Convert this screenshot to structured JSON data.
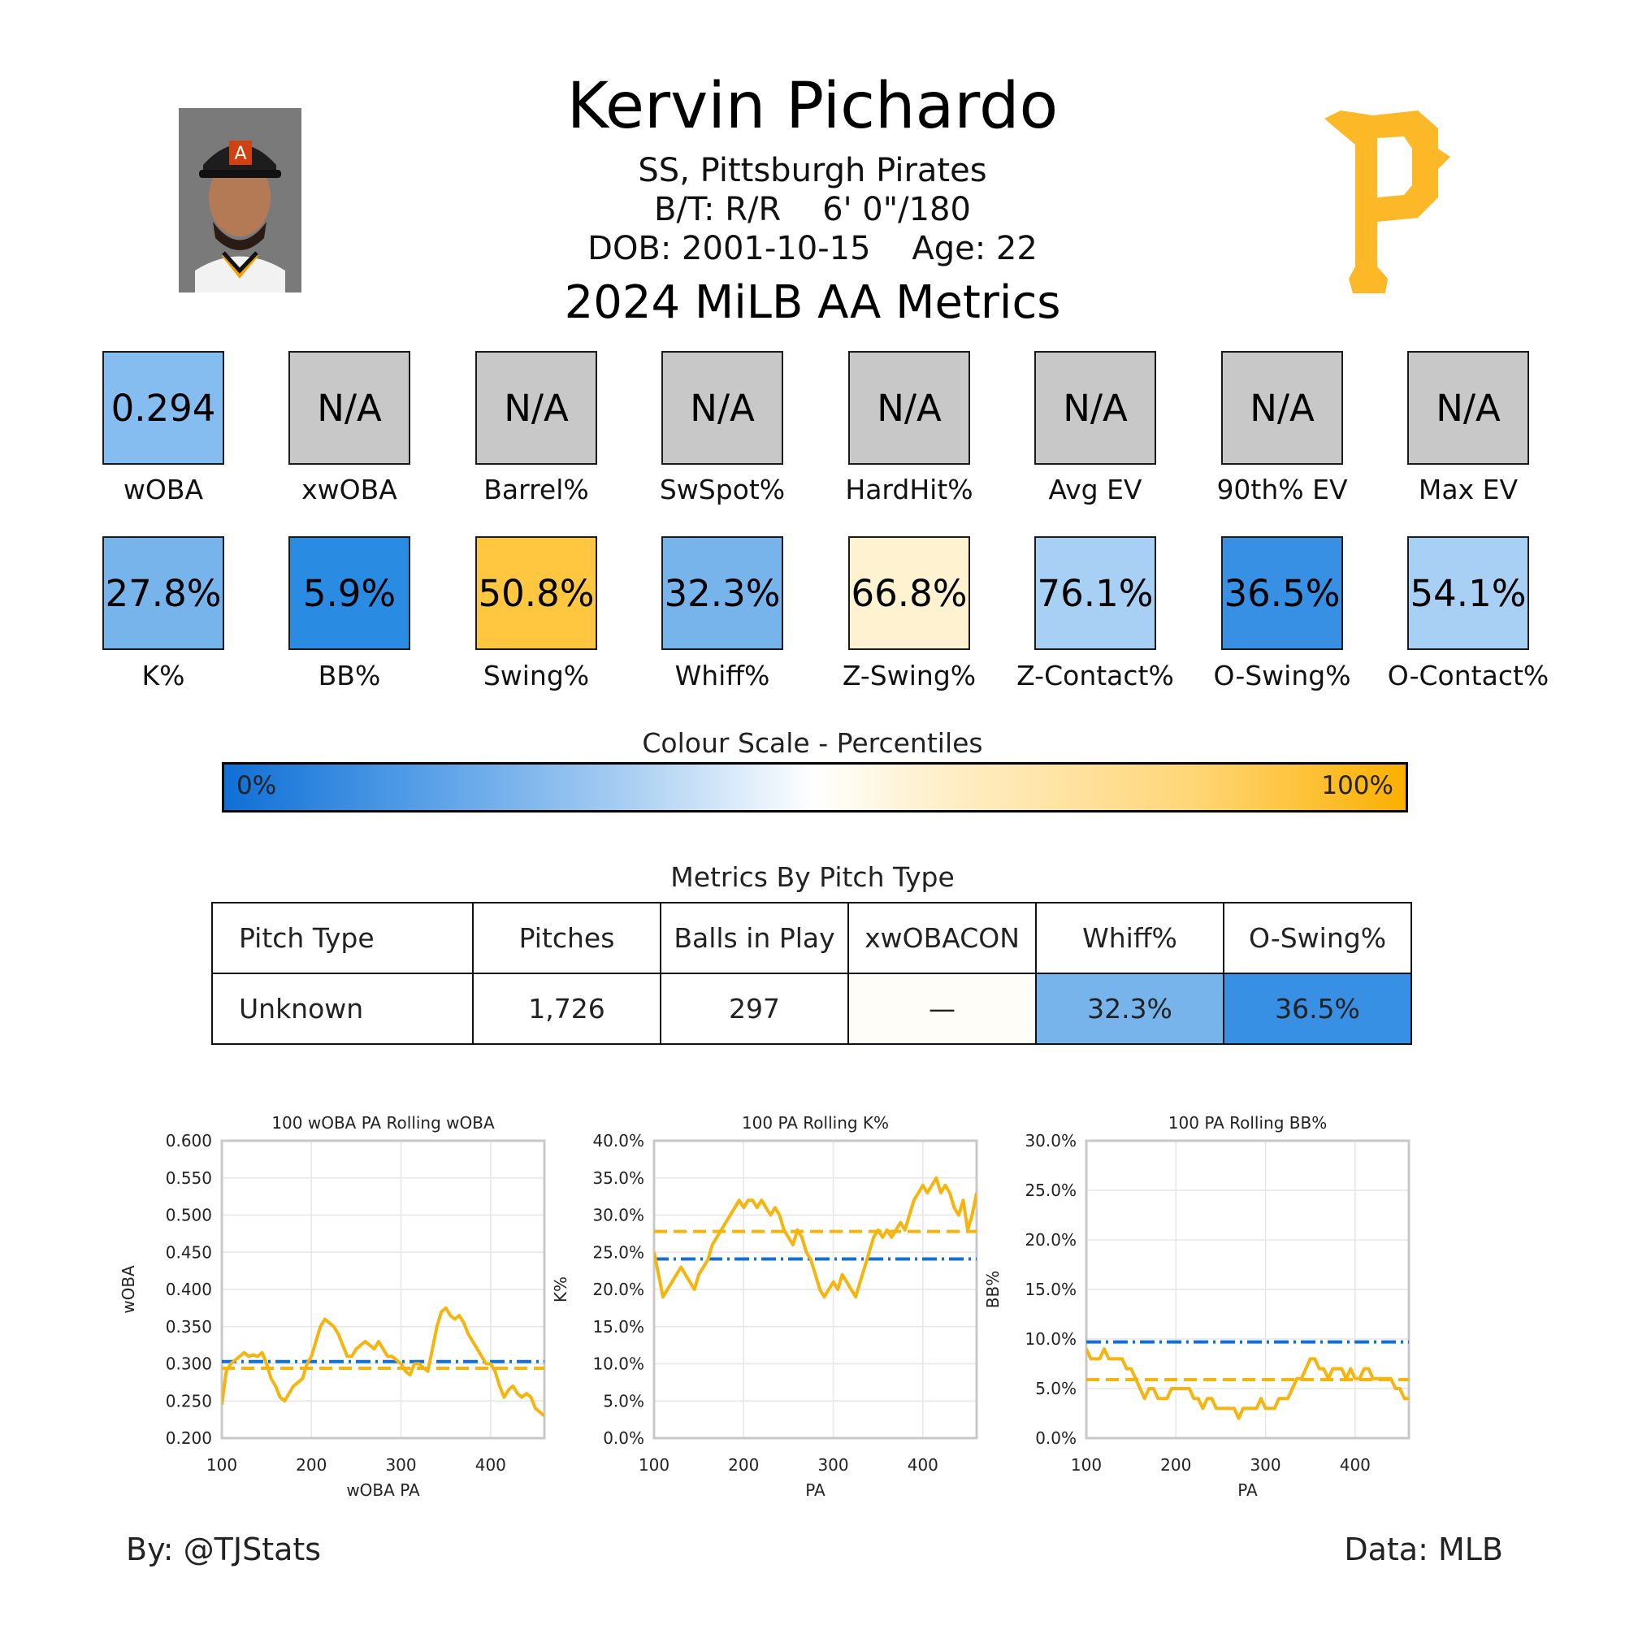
{
  "header": {
    "name": "Kervin Pichardo",
    "position_team": "SS, Pittsburgh Pirates",
    "bt_height": "B/T: R/R    6' 0\"/180",
    "dob_age": "DOB: 2001-10-15    Age: 22",
    "section_title": "2024 MiLB AA Metrics",
    "logo_icon": "pirates-p-logo",
    "photo_icon": "player-headshot"
  },
  "metrics_row1": [
    {
      "label": "wOBA",
      "value": "0.294",
      "color": "#85bdf0"
    },
    {
      "label": "xwOBA",
      "value": "N/A",
      "color": "#c8c8c8"
    },
    {
      "label": "Barrel%",
      "value": "N/A",
      "color": "#c8c8c8"
    },
    {
      "label": "SwSpot%",
      "value": "N/A",
      "color": "#c8c8c8"
    },
    {
      "label": "HardHit%",
      "value": "N/A",
      "color": "#c8c8c8"
    },
    {
      "label": "Avg EV",
      "value": "N/A",
      "color": "#c8c8c8"
    },
    {
      "label": "90th% EV",
      "value": "N/A",
      "color": "#c8c8c8"
    },
    {
      "label": "Max EV",
      "value": "N/A",
      "color": "#c8c8c8"
    }
  ],
  "metrics_row2": [
    {
      "label": "K%",
      "value": "27.8%",
      "color": "#78b4ec"
    },
    {
      "label": "BB%",
      "value": "5.9%",
      "color": "#2a8be3"
    },
    {
      "label": "Swing%",
      "value": "50.8%",
      "color": "#ffc640"
    },
    {
      "label": "Whiff%",
      "value": "32.3%",
      "color": "#78b4ec"
    },
    {
      "label": "Z-Swing%",
      "value": "66.8%",
      "color": "#fff2d0"
    },
    {
      "label": "Z-Contact%",
      "value": "76.1%",
      "color": "#a7d0f4"
    },
    {
      "label": "O-Swing%",
      "value": "36.5%",
      "color": "#3790e4"
    },
    {
      "label": "O-Contact%",
      "value": "54.1%",
      "color": "#a7d0f4"
    }
  ],
  "colour_scale": {
    "title": "Colour Scale - Percentiles",
    "min_label": "0%",
    "max_label": "100%"
  },
  "pitch_table": {
    "title": "Metrics By Pitch Type",
    "headers": [
      "Pitch Type",
      "Pitches",
      "Balls in Play",
      "xwOBACON",
      "Whiff%",
      "O-Swing%"
    ],
    "rows": [
      {
        "cells": [
          "Unknown",
          "1,726",
          "297",
          "—",
          "32.3%",
          "36.5%"
        ],
        "colors": [
          "#ffffff",
          "#ffffff",
          "#ffffff",
          "#fffdf8",
          "#78b4ec",
          "#3790e4"
        ]
      }
    ]
  },
  "chart_data": [
    {
      "type": "line",
      "title": "100 wOBA PA Rolling wOBA",
      "xlabel": "wOBA PA",
      "ylabel": "wOBA",
      "xlim": [
        100,
        460
      ],
      "ylim": [
        0.2,
        0.6
      ],
      "xticks": [
        100,
        200,
        300,
        400
      ],
      "yticks": [
        0.2,
        0.25,
        0.3,
        0.35,
        0.4,
        0.45,
        0.5,
        0.55,
        0.6
      ],
      "ytick_labels": [
        "0.200",
        "0.250",
        "0.300",
        "0.350",
        "0.400",
        "0.450",
        "0.500",
        "0.550",
        "0.600"
      ],
      "grid": true,
      "player_avg": 0.294,
      "league_avg": 0.303,
      "series": [
        {
          "x": [
            100,
            105,
            110,
            115,
            120,
            125,
            130,
            135,
            140,
            145,
            150,
            155,
            160,
            165,
            170,
            175,
            180,
            185,
            190,
            195,
            200,
            205,
            210,
            215,
            220,
            225,
            230,
            235,
            240,
            245,
            250,
            255,
            260,
            265,
            270,
            275,
            280,
            285,
            290,
            295,
            300,
            305,
            310,
            315,
            320,
            325,
            330,
            335,
            340,
            345,
            350,
            355,
            360,
            365,
            370,
            375,
            380,
            385,
            390,
            395,
            400,
            405,
            410,
            415,
            420,
            425,
            430,
            435,
            440,
            445,
            450,
            455,
            460
          ],
          "y": [
            0.245,
            0.29,
            0.3,
            0.305,
            0.31,
            0.315,
            0.31,
            0.312,
            0.31,
            0.315,
            0.3,
            0.28,
            0.27,
            0.255,
            0.25,
            0.26,
            0.27,
            0.275,
            0.28,
            0.3,
            0.31,
            0.33,
            0.35,
            0.36,
            0.355,
            0.35,
            0.34,
            0.325,
            0.31,
            0.31,
            0.32,
            0.325,
            0.33,
            0.325,
            0.32,
            0.33,
            0.32,
            0.31,
            0.31,
            0.305,
            0.3,
            0.29,
            0.285,
            0.3,
            0.3,
            0.295,
            0.29,
            0.32,
            0.35,
            0.37,
            0.375,
            0.365,
            0.36,
            0.365,
            0.355,
            0.34,
            0.33,
            0.32,
            0.31,
            0.3,
            0.3,
            0.29,
            0.27,
            0.255,
            0.265,
            0.27,
            0.26,
            0.255,
            0.26,
            0.255,
            0.24,
            0.235,
            0.23
          ]
        }
      ]
    },
    {
      "type": "line",
      "title": "100 PA Rolling K%",
      "xlabel": "PA",
      "ylabel": "K%",
      "xlim": [
        100,
        460
      ],
      "ylim": [
        0,
        40
      ],
      "xticks": [
        100,
        200,
        300,
        400
      ],
      "yticks": [
        0,
        5,
        10,
        15,
        20,
        25,
        30,
        35,
        40
      ],
      "ytick_labels": [
        "0.0%",
        "5.0%",
        "10.0%",
        "15.0%",
        "20.0%",
        "25.0%",
        "30.0%",
        "35.0%",
        "40.0%"
      ],
      "grid": true,
      "player_avg": 27.8,
      "league_avg": 24.1,
      "series": [
        {
          "x": [
            100,
            105,
            110,
            115,
            120,
            125,
            130,
            135,
            140,
            145,
            150,
            155,
            160,
            165,
            170,
            175,
            180,
            185,
            190,
            195,
            200,
            205,
            210,
            215,
            220,
            225,
            230,
            235,
            240,
            245,
            250,
            255,
            260,
            265,
            270,
            275,
            280,
            285,
            290,
            295,
            300,
            305,
            310,
            315,
            320,
            325,
            330,
            335,
            340,
            345,
            350,
            355,
            360,
            365,
            370,
            375,
            380,
            385,
            390,
            395,
            400,
            405,
            410,
            415,
            420,
            425,
            430,
            435,
            440,
            445,
            450,
            455,
            460
          ],
          "y": [
            25,
            22,
            19,
            20,
            21,
            22,
            23,
            22,
            21,
            20,
            22,
            23,
            24,
            26,
            27,
            28,
            29,
            30,
            31,
            32,
            31,
            32,
            32,
            31,
            32,
            31,
            30,
            31,
            30,
            28,
            27,
            26,
            28,
            27,
            25,
            24,
            22,
            20,
            19,
            20,
            21,
            20,
            22,
            21,
            20,
            19,
            21,
            23,
            25,
            27,
            28,
            27,
            28,
            27,
            28,
            29,
            28,
            30,
            32,
            33,
            34,
            33,
            34,
            35,
            33,
            34,
            33,
            31,
            30,
            32,
            28,
            30,
            33
          ]
        }
      ]
    },
    {
      "type": "line",
      "title": "100 PA Rolling BB%",
      "xlabel": "PA",
      "ylabel": "BB%",
      "xlim": [
        100,
        460
      ],
      "ylim": [
        0,
        30
      ],
      "xticks": [
        100,
        200,
        300,
        400
      ],
      "yticks": [
        0,
        5,
        10,
        15,
        20,
        25,
        30
      ],
      "ytick_labels": [
        "0.0%",
        "5.0%",
        "10.0%",
        "15.0%",
        "20.0%",
        "25.0%",
        "30.0%"
      ],
      "grid": true,
      "player_avg": 5.9,
      "league_avg": 9.7,
      "series": [
        {
          "x": [
            100,
            105,
            110,
            115,
            120,
            125,
            130,
            135,
            140,
            145,
            150,
            155,
            160,
            165,
            170,
            175,
            180,
            185,
            190,
            195,
            200,
            205,
            210,
            215,
            220,
            225,
            230,
            235,
            240,
            245,
            250,
            255,
            260,
            265,
            270,
            275,
            280,
            285,
            290,
            295,
            300,
            305,
            310,
            315,
            320,
            325,
            330,
            335,
            340,
            345,
            350,
            355,
            360,
            365,
            370,
            375,
            380,
            385,
            390,
            395,
            400,
            405,
            410,
            415,
            420,
            425,
            430,
            435,
            440,
            445,
            450,
            455,
            460
          ],
          "y": [
            9,
            8,
            8,
            8,
            9,
            8,
            8,
            8,
            8,
            7,
            7,
            6,
            5,
            4,
            5,
            5,
            4,
            4,
            4,
            5,
            5,
            5,
            5,
            5,
            4,
            4,
            3,
            4,
            4,
            3,
            3,
            3,
            3,
            3,
            2,
            3,
            3,
            3,
            3,
            4,
            3,
            3,
            3,
            4,
            4,
            4,
            5,
            6,
            6,
            7,
            8,
            8,
            7,
            7,
            6,
            7,
            7,
            7,
            6,
            7,
            6,
            6,
            7,
            7,
            6,
            6,
            6,
            6,
            6,
            5,
            5,
            4,
            4
          ]
        }
      ]
    }
  ],
  "chart_legend": {
    "player_line": "#f5b50e",
    "league_line": "#1170d4"
  },
  "footer": {
    "left": "By: @TJStats",
    "right": "Data: MLB"
  }
}
